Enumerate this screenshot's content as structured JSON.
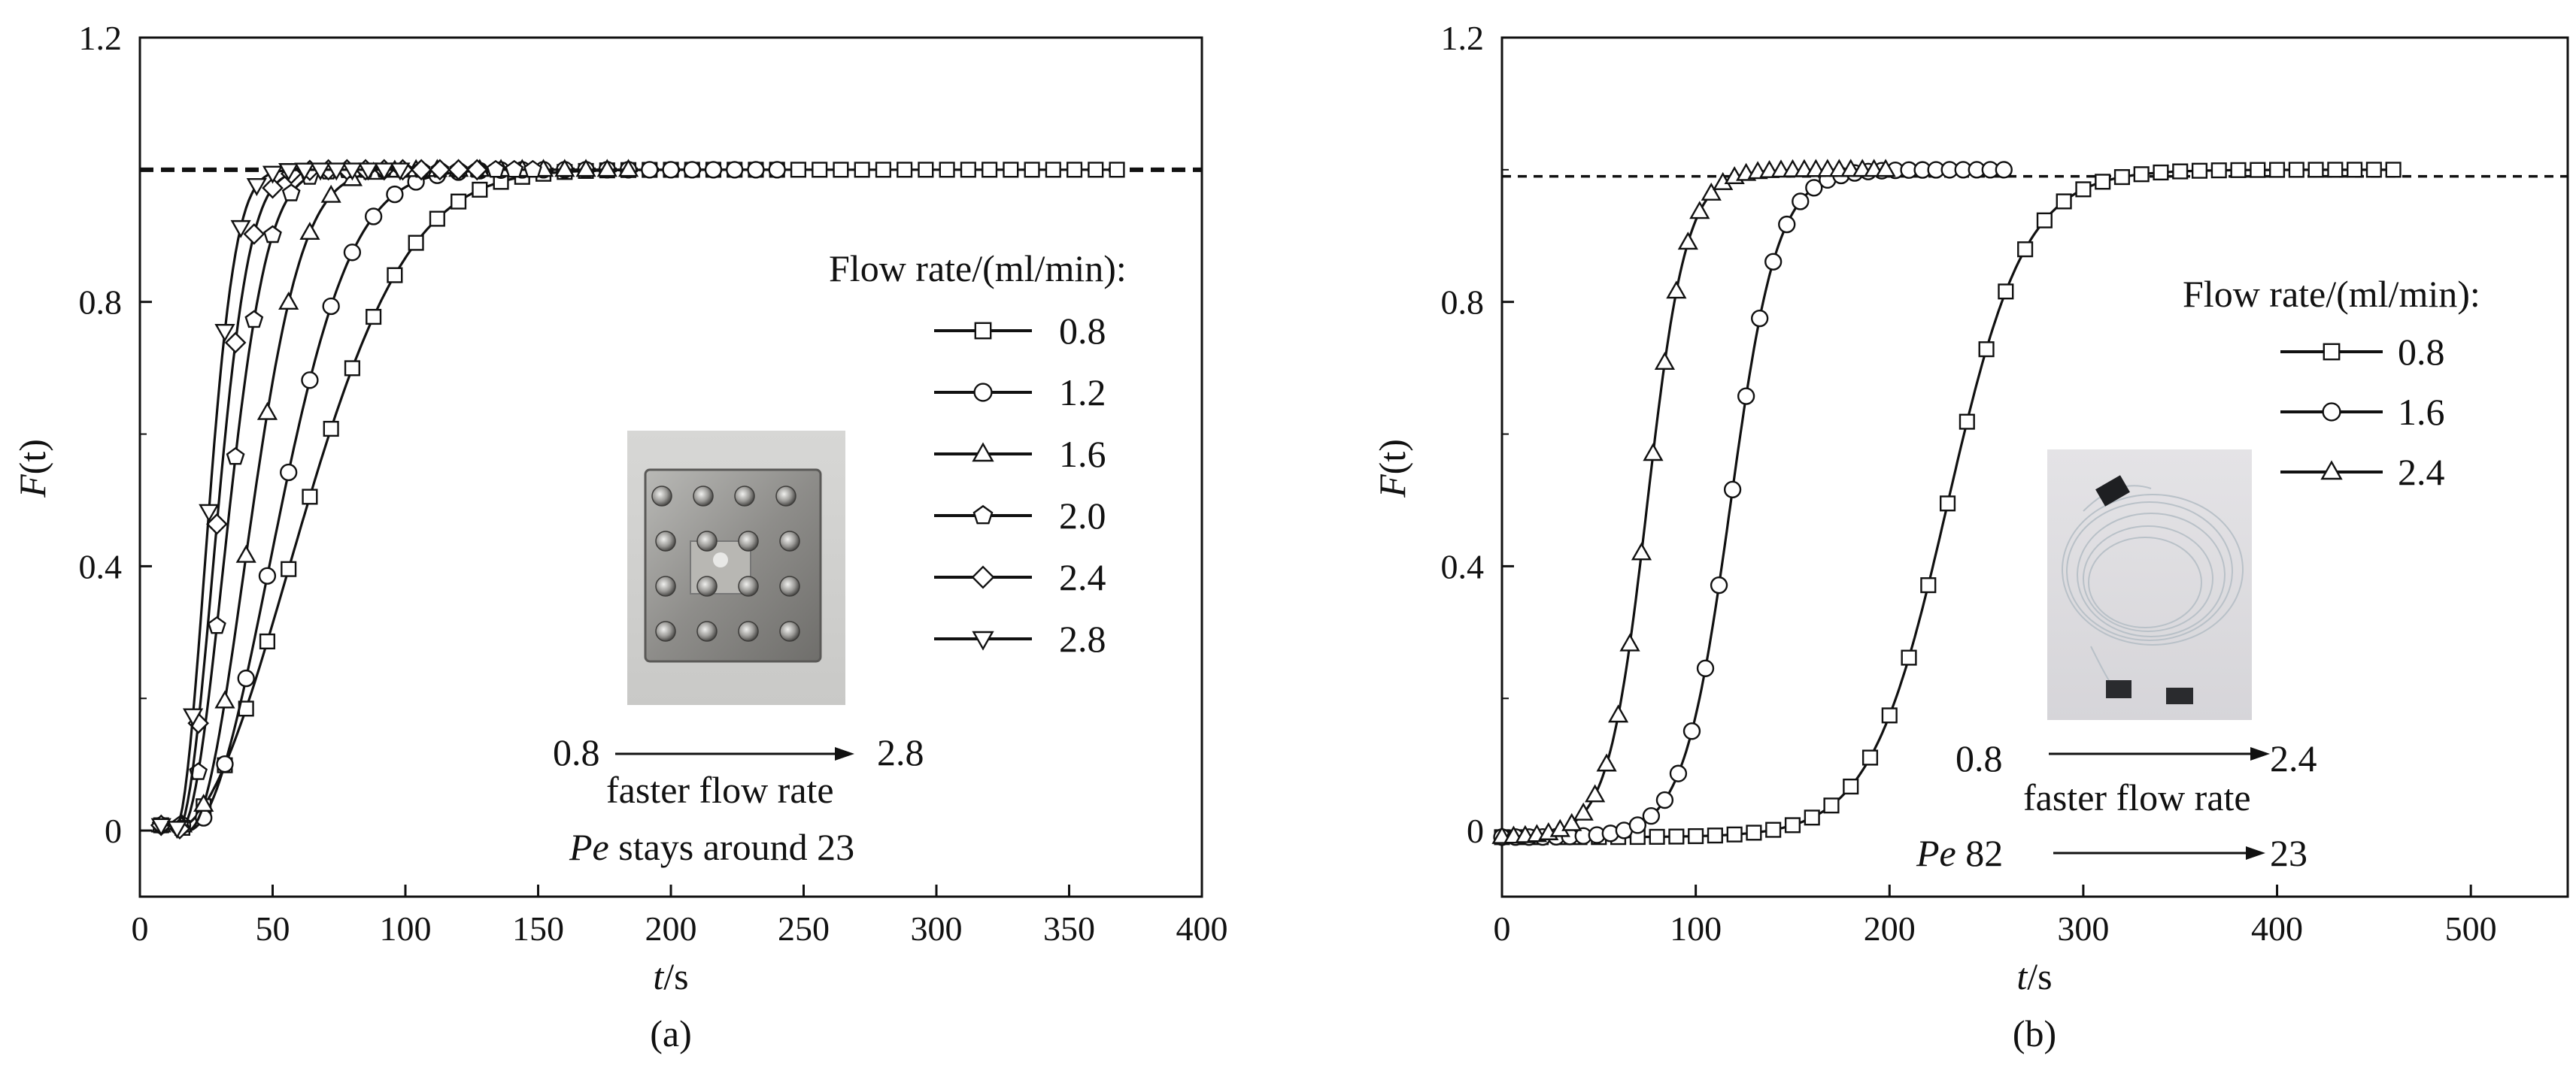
{
  "chart_data": [
    {
      "id": "a",
      "type": "scatter",
      "panel_label": "(a)",
      "xlabel_italic": "t",
      "xlabel_unit": "/s",
      "ylabel_italic": "F",
      "ylabel_rest": "(t)",
      "xlim": [
        0,
        400
      ],
      "ylim": [
        -0.1,
        1.2
      ],
      "xticks": [
        0,
        50,
        100,
        150,
        200,
        250,
        300,
        350,
        400
      ],
      "yticks": [
        0,
        0.4,
        0.8,
        1.2
      ],
      "ytick_labels": [
        "0",
        "0.4",
        "0.8",
        "1.2"
      ],
      "reference_line": {
        "y": 1.0,
        "style": "dashed"
      },
      "legend": {
        "title": "Flow rate/(ml/min):",
        "location": "right"
      },
      "series": [
        {
          "name": "0.8",
          "marker": "square",
          "x0": 8,
          "t0": 12,
          "tau": 62,
          "xmax": 368,
          "step": 8
        },
        {
          "name": "1.2",
          "marker": "circle",
          "x0": 8,
          "t0": 18,
          "tau": 43,
          "xmax": 240,
          "step": 8
        },
        {
          "name": "1.6",
          "marker": "triangle-up",
          "x0": 8,
          "t0": 18,
          "tau": 30,
          "xmax": 185,
          "step": 8
        },
        {
          "name": "2.0",
          "marker": "pentagon",
          "x0": 8,
          "t0": 15,
          "tau": 23,
          "xmax": 150,
          "step": 7
        },
        {
          "name": "2.4",
          "marker": "diamond",
          "x0": 8,
          "t0": 14,
          "tau": 19,
          "xmax": 130,
          "step": 7
        },
        {
          "name": "2.8",
          "marker": "triangle-down",
          "x0": 8,
          "t0": 13,
          "tau": 16,
          "xmax": 100,
          "step": 6
        }
      ],
      "annotations": {
        "from": "0.8",
        "to": "2.8",
        "caption": "faster flow rate",
        "pe_italic": "Pe",
        "pe_text": " stays around 23"
      },
      "inset_photo": "stainless-steel-reactor-block"
    },
    {
      "id": "b",
      "type": "scatter",
      "panel_label": "(b)",
      "xlabel_italic": "t",
      "xlabel_unit": "/s",
      "ylabel_italic": "F",
      "ylabel_rest": "(t)",
      "xlim": [
        0,
        550
      ],
      "ylim": [
        -0.1,
        1.2
      ],
      "xticks": [
        0,
        100,
        200,
        300,
        400,
        500
      ],
      "yticks": [
        0,
        0.4,
        0.8,
        1.2
      ],
      "ytick_labels": [
        "0",
        "0.4",
        "0.8",
        "1.2"
      ],
      "reference_line": {
        "y": 0.99,
        "style": "dashed"
      },
      "legend": {
        "title": "Flow rate/(ml/min):",
        "location": "right"
      },
      "series": [
        {
          "name": "0.8",
          "marker": "square",
          "x0": 0,
          "center": 230,
          "width": 20,
          "xmax": 460,
          "step": 10
        },
        {
          "name": "1.6",
          "marker": "circle",
          "x0": 0,
          "center": 118,
          "width": 12,
          "xmax": 262,
          "step": 7
        },
        {
          "name": "2.4",
          "marker": "triangle-up",
          "x0": 0,
          "center": 75,
          "width": 10,
          "xmax": 200,
          "step": 6
        }
      ],
      "annotations": {
        "from": "0.8",
        "to": "2.4",
        "caption": "faster flow rate",
        "pe_italic": "Pe",
        "pe_from": " 82",
        "pe_to": "23"
      },
      "inset_photo": "coiled-transparent-tubing"
    }
  ]
}
